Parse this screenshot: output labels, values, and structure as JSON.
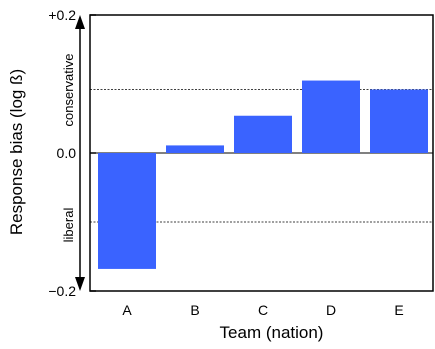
{
  "chart_data": {
    "type": "bar",
    "categories": [
      "A",
      "B",
      "C",
      "D",
      "E"
    ],
    "values": [
      -0.168,
      0.011,
      0.054,
      0.105,
      0.092
    ],
    "ylim": [
      -0.2,
      0.2
    ],
    "yticks": [
      {
        "value": 0.2,
        "label": "+0.2"
      },
      {
        "value": 0.0,
        "label": "0.0"
      },
      {
        "value": -0.2,
        "label": "−0.2"
      }
    ],
    "reference_lines": [
      0.092,
      -0.1
    ],
    "xlabel": "Team (nation)",
    "ylabel": "Response bias (log ß)",
    "annotations": {
      "upper": "conservative",
      "lower": "liberal"
    },
    "bar_color": "#3a63ff",
    "grid": false,
    "legend": "none"
  }
}
